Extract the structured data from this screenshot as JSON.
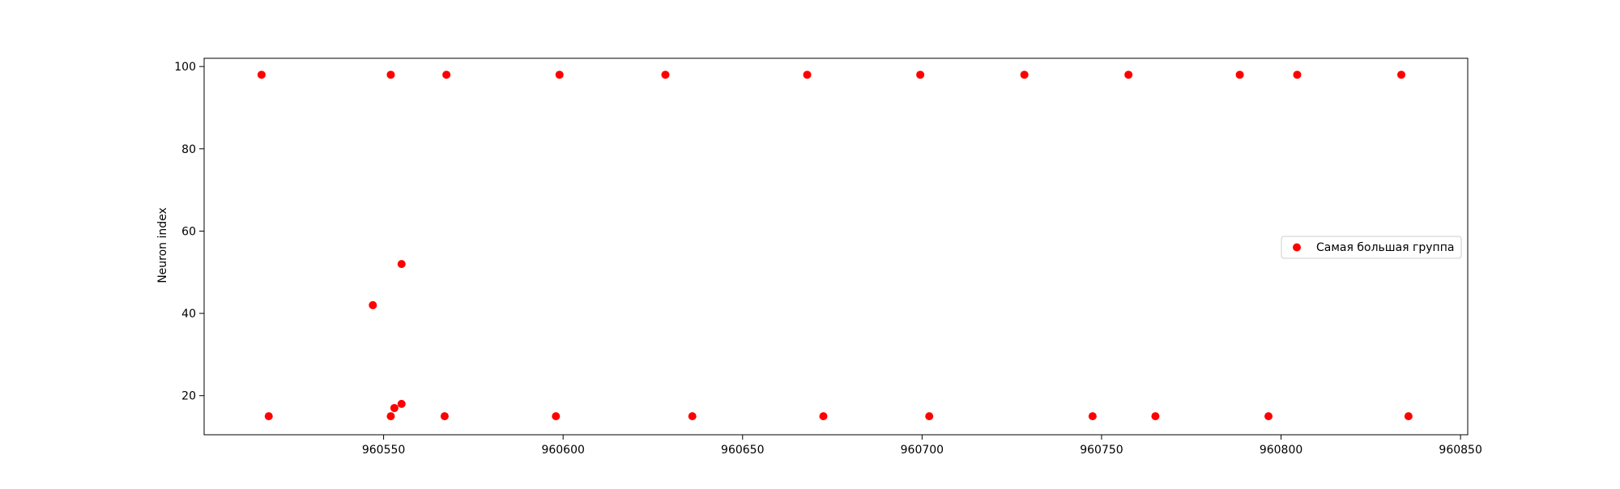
{
  "chart_data": {
    "type": "scatter",
    "title": "",
    "xlabel": "",
    "ylabel": "Neuron index",
    "xlim": [
      960500,
      960852
    ],
    "ylim": [
      10.5,
      102
    ],
    "xticks": [
      960550,
      960600,
      960650,
      960700,
      960750,
      960800,
      960850
    ],
    "yticks": [
      20,
      40,
      60,
      80,
      100
    ],
    "xtick_labels": [
      "960550",
      "960600",
      "960650",
      "960700",
      "960750",
      "960800",
      "960850"
    ],
    "ytick_labels": [
      "20",
      "40",
      "60",
      "80",
      "100"
    ],
    "grid": false,
    "legend": {
      "position": "right",
      "entries": [
        {
          "label": "Самая большая группа",
          "color": "#ff0000"
        }
      ]
    },
    "series": [
      {
        "name": "Самая большая группа",
        "color": "#ff0000",
        "marker": "circle",
        "points": [
          {
            "x": 960516,
            "y": 98
          },
          {
            "x": 960552,
            "y": 98
          },
          {
            "x": 960567.5,
            "y": 98
          },
          {
            "x": 960599,
            "y": 98
          },
          {
            "x": 960628.5,
            "y": 98
          },
          {
            "x": 960668,
            "y": 98
          },
          {
            "x": 960699.5,
            "y": 98
          },
          {
            "x": 960728.5,
            "y": 98
          },
          {
            "x": 960757.5,
            "y": 98
          },
          {
            "x": 960788.5,
            "y": 98
          },
          {
            "x": 960804.5,
            "y": 98
          },
          {
            "x": 960833.5,
            "y": 98
          },
          {
            "x": 960518,
            "y": 15
          },
          {
            "x": 960547,
            "y": 42
          },
          {
            "x": 960552,
            "y": 15
          },
          {
            "x": 960553,
            "y": 17
          },
          {
            "x": 960555,
            "y": 52
          },
          {
            "x": 960555,
            "y": 18
          },
          {
            "x": 960567,
            "y": 15
          },
          {
            "x": 960598,
            "y": 15
          },
          {
            "x": 960636,
            "y": 15
          },
          {
            "x": 960672.5,
            "y": 15
          },
          {
            "x": 960702,
            "y": 15
          },
          {
            "x": 960747.5,
            "y": 15
          },
          {
            "x": 960765,
            "y": 15
          },
          {
            "x": 960796.5,
            "y": 15
          },
          {
            "x": 960835.5,
            "y": 15
          }
        ]
      }
    ]
  }
}
